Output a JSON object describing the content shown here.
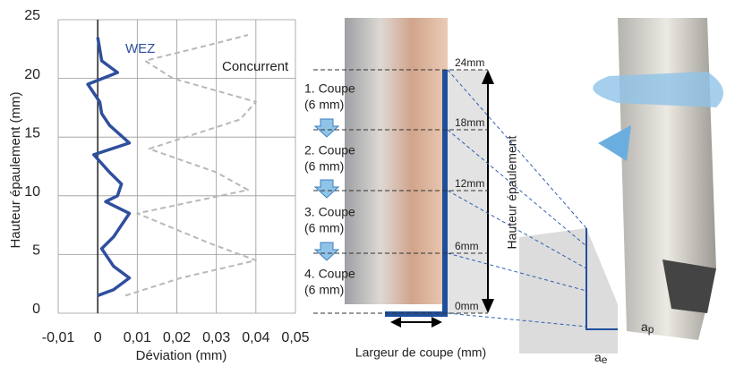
{
  "chart_data": {
    "type": "line",
    "xlabel": "Déviation (mm)",
    "ylabel": "Hauteur épaulement (mm)",
    "xlim": [
      -0.01,
      0.05
    ],
    "xticks": [
      {
        "value": -0.01,
        "label": "-0,01"
      },
      0,
      {
        "value": 0.01,
        "label": "0,01"
      },
      {
        "value": 0.02,
        "label": "0,02"
      },
      {
        "value": 0.03,
        "label": "0,03"
      },
      {
        "value": 0.04,
        "label": "0,04"
      },
      {
        "value": 0.05,
        "label": "0,05"
      }
    ],
    "ylim": [
      0,
      25
    ],
    "yticks": [
      0,
      5,
      10,
      15,
      20,
      25
    ],
    "grid": true,
    "series": [
      {
        "name": "WEZ",
        "color": "#2f4f9e",
        "dashed": false,
        "x": [
          0,
          0.004,
          0.008,
          0.004,
          0.001,
          0.004,
          0.008,
          0.002,
          0.005,
          0.006,
          0.003,
          -0.001,
          0.008,
          0.003,
          0.001,
          0.0005,
          -0.0025,
          0.005,
          0.001,
          0
        ],
        "values": [
          1.5,
          2,
          3,
          4,
          5.5,
          6.5,
          8.5,
          9.5,
          10,
          11,
          12,
          13.5,
          14.5,
          16,
          17,
          18,
          19.5,
          20.5,
          21.5,
          23.5
        ]
      },
      {
        "name": "Concurrent",
        "color": "#b8b8b8",
        "dashed": true,
        "x": [
          0.007,
          0.021,
          0.04,
          0.028,
          0.01,
          0.038,
          0.03,
          0.013,
          0.036,
          0.04,
          0.019,
          0.012,
          0.03,
          0.038
        ],
        "values": [
          1.5,
          3,
          4.5,
          6,
          8.5,
          10.5,
          12,
          14,
          16.5,
          18,
          20,
          21.5,
          23,
          23.7
        ]
      }
    ]
  },
  "diagram": {
    "cuts": [
      [
        "1. Coupe",
        "(6 mm)"
      ],
      [
        "2. Coupe",
        "(6 mm)"
      ],
      [
        "3. Coupe",
        "(6 mm)"
      ],
      [
        "4. Coupe",
        "(6 mm)"
      ]
    ],
    "levels": [
      "24mm",
      "18mm",
      "12mm",
      "6mm",
      "0mm"
    ],
    "height_label": "Hauteur épaulement",
    "width_label": "Largeur de coupe (mm)",
    "ap": [
      "a",
      "p"
    ],
    "ae": [
      "a",
      "e"
    ]
  }
}
